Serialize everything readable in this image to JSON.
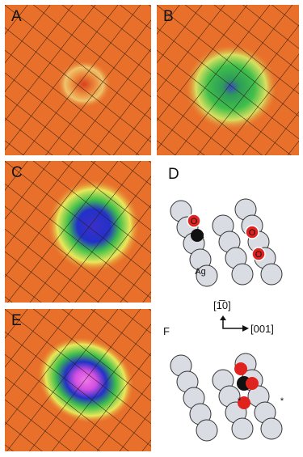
{
  "figure": {
    "panels": [
      {
        "id": "A",
        "label": "A"
      },
      {
        "id": "B",
        "label": "B"
      },
      {
        "id": "C",
        "label": "C"
      },
      {
        "id": "D",
        "label": "D"
      },
      {
        "id": "E",
        "label": "E"
      },
      {
        "id": "F",
        "label": "F"
      }
    ],
    "atoms": {
      "carbon": "C",
      "oxygen": "O",
      "silver": "Ag"
    },
    "axes": {
      "vertical": "[1̅0]",
      "horizontal": "[001]"
    },
    "markers": {
      "site": "*"
    },
    "colors": {
      "background": "#e8702a",
      "grid": "#2a1a10",
      "green": "#3fbf4a",
      "yellow": "#e9e85a",
      "blue": "#2231c8",
      "magenta": "#e64fe0",
      "silver_atom": "#d9dde3",
      "oxygen_atom": "#e0231e",
      "carbon_atom": "#111111"
    }
  }
}
